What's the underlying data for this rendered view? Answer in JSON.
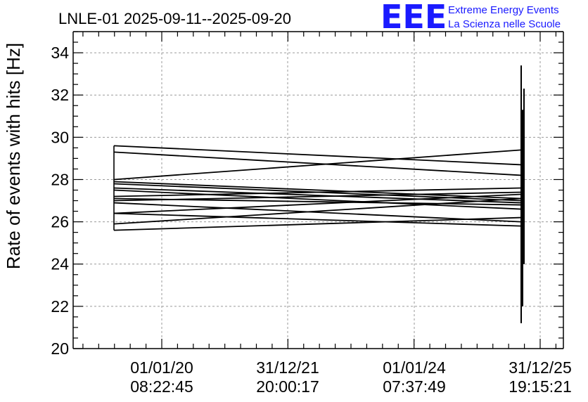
{
  "chart_data": {
    "type": "line",
    "title": "LNLE-01 2025-09-11--2025-09-20",
    "xlabel": "",
    "ylabel": "Rate of events with hits [Hz]",
    "ylim": [
      20,
      35
    ],
    "yticks": [
      20,
      22,
      24,
      26,
      28,
      30,
      32,
      34
    ],
    "ytick_labels": [
      "20",
      "22",
      "24",
      "26",
      "28",
      "30",
      "32",
      "34"
    ],
    "xticks": [
      {
        "line1": "01/01/20",
        "line2": "08:22:45"
      },
      {
        "line1": "31/12/21",
        "line2": "20:00:17"
      },
      {
        "line1": "01/01/24",
        "line2": "07:37:49"
      },
      {
        "line1": "31/12/25",
        "line2": "19:15:21"
      }
    ],
    "grid": true,
    "segments": [
      {
        "y0": 29.6,
        "y1": 28.7
      },
      {
        "y0": 29.3,
        "y1": 28.2
      },
      {
        "y0": 28.0,
        "y1": 29.4
      },
      {
        "y0": 27.9,
        "y1": 27.1
      },
      {
        "y0": 27.8,
        "y1": 27.0
      },
      {
        "y0": 27.6,
        "y1": 26.9
      },
      {
        "y0": 27.5,
        "y1": 26.6
      },
      {
        "y0": 27.2,
        "y1": 27.6
      },
      {
        "y0": 27.1,
        "y1": 26.8
      },
      {
        "y0": 27.0,
        "y1": 27.4
      },
      {
        "y0": 26.9,
        "y1": 26.0
      },
      {
        "y0": 26.4,
        "y1": 27.3
      },
      {
        "y0": 26.4,
        "y1": 25.8
      },
      {
        "y0": 25.9,
        "y1": 27.1
      },
      {
        "y0": 25.6,
        "y1": 26.2
      }
    ],
    "spikes": [
      {
        "lo": 21.2,
        "hi": 33.4
      },
      {
        "lo": 22.0,
        "hi": 31.3
      },
      {
        "lo": 24.0,
        "hi": 32.3
      }
    ]
  },
  "logo": {
    "mark": "EEE",
    "line1": "Extreme Energy Events",
    "line2": "La Scienza nelle Scuole",
    "color": "#1a1aff"
  }
}
